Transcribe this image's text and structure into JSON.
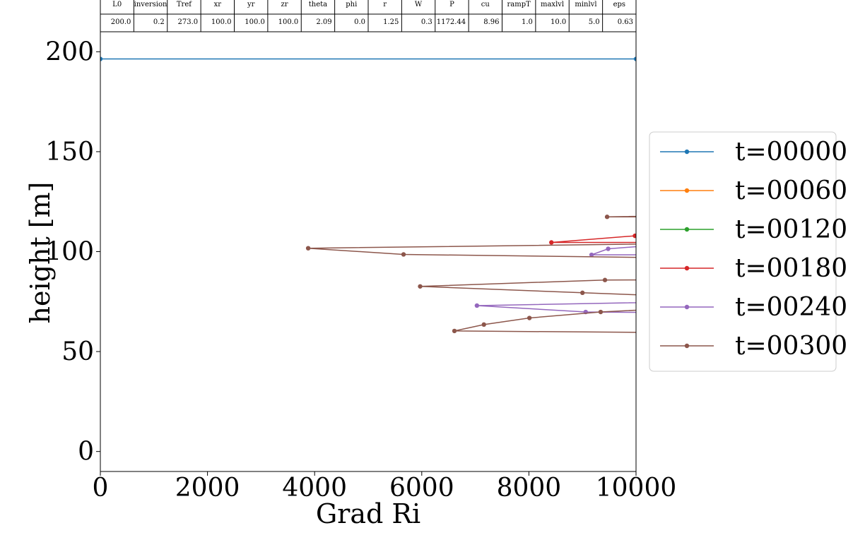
{
  "chart_data": {
    "type": "line",
    "title": "",
    "xlabel": "Grad Ri",
    "ylabel": "height [m]",
    "xlim": [
      0,
      10000
    ],
    "ylim": [
      -10,
      210
    ],
    "xticks": [
      0,
      2000,
      4000,
      6000,
      8000,
      10000
    ],
    "yticks": [
      0,
      50,
      100,
      150,
      200
    ],
    "x_tick_labels": [
      "0",
      "2000",
      "4000",
      "6000",
      "8000",
      "10000"
    ],
    "y_tick_labels": [
      "0",
      "50",
      "100",
      "150",
      "200"
    ],
    "grid": false,
    "legend_position": "right",
    "parameters": {
      "headers": [
        "L0",
        "inversion",
        "Tref",
        "xr",
        "yr",
        "zr",
        "theta",
        "phi",
        "r",
        "W",
        "P",
        "cu",
        "rampT",
        "maxlvl",
        "minlvl",
        "eps"
      ],
      "values": [
        "200.0",
        "0.2",
        "273.0",
        "100.0",
        "100.0",
        "100.0",
        "2.09",
        "0.0",
        "1.25",
        "0.3",
        "1172.44",
        "8.96",
        "1.0",
        "10.0",
        "5.0",
        "0.63"
      ]
    },
    "series": [
      {
        "name": "t=00000",
        "color": "#1f77b4",
        "points": [
          [
            0,
            196.4
          ],
          [
            10000,
            196.4
          ],
          [
            14000,
            196.4
          ]
        ]
      },
      {
        "name": "t=00060",
        "color": "#ff7f0e",
        "points": []
      },
      {
        "name": "t=00120",
        "color": "#2ca02c",
        "points": []
      },
      {
        "name": "t=00180",
        "color": "#d62728",
        "points": [
          [
            12500,
            104.6
          ],
          [
            8420,
            104.6
          ],
          [
            9980,
            107.9
          ],
          [
            12500,
            109.0
          ]
        ]
      },
      {
        "name": "t=00240",
        "color": "#9467bd",
        "points": [
          [
            12000,
            98.4
          ],
          [
            9170,
            98.4
          ],
          [
            9480,
            101.4
          ],
          [
            12000,
            106.5
          ],
          [
            12500,
            75.7
          ],
          [
            7030,
            73.0
          ],
          [
            9060,
            69.8
          ],
          [
            12500,
            69.1
          ]
        ]
      },
      {
        "name": "t=00300",
        "color": "#8c564b",
        "points": [
          [
            11500,
            117.4
          ],
          [
            9460,
            117.4
          ],
          [
            11500,
            118.3
          ],
          [
            12500,
            104.6
          ],
          [
            3880,
            101.7
          ],
          [
            5660,
            98.6
          ],
          [
            12500,
            96.3
          ],
          [
            12500,
            86.0
          ],
          [
            9420,
            85.8
          ],
          [
            5970,
            82.6
          ],
          [
            9000,
            79.4
          ],
          [
            12500,
            75.9
          ],
          [
            12500,
            74.0
          ],
          [
            9340,
            69.8
          ],
          [
            8010,
            66.8
          ],
          [
            7160,
            63.5
          ],
          [
            6610,
            60.3
          ],
          [
            12500,
            59.1
          ]
        ]
      }
    ]
  }
}
